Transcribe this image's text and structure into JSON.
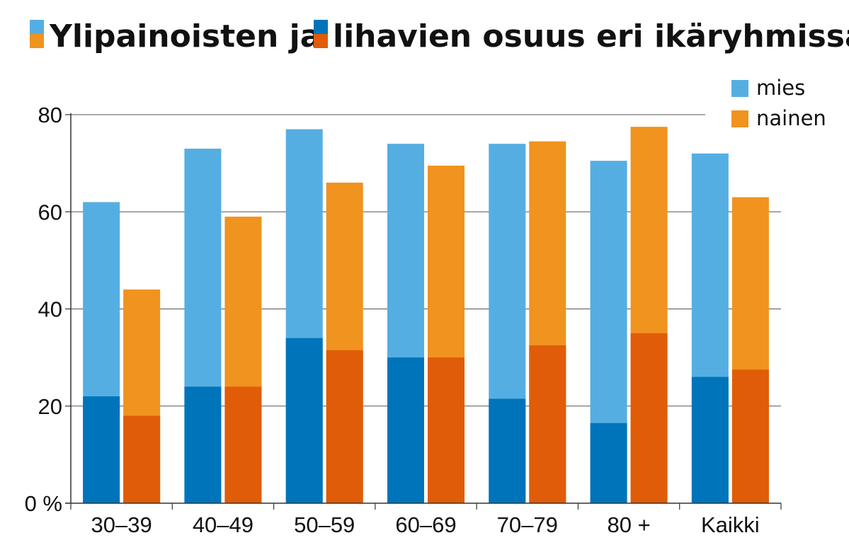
{
  "chart_data": {
    "type": "bar",
    "stacking": "overlapping: obese portion drawn over overweight portion",
    "title_part1": "Ylipainoisten ja",
    "title_part2": "lihavien osuus eri ikäryhmissä",
    "categories": [
      "30–39",
      "40–49",
      "50–59",
      "60–69",
      "70–79",
      "80 +",
      "Kaikki"
    ],
    "series": [
      {
        "name": "mies",
        "overweight": [
          62,
          73,
          77,
          74,
          74,
          70.5,
          72
        ],
        "obese": [
          22,
          24,
          34,
          30,
          21.5,
          16.5,
          26
        ]
      },
      {
        "name": "nainen",
        "overweight": [
          44,
          59,
          66,
          69.5,
          74.5,
          77.5,
          63
        ],
        "obese": [
          18,
          24,
          31.5,
          30,
          32.5,
          35,
          27.5
        ]
      }
    ],
    "y_ticks": [
      "0 %",
      "20",
      "40",
      "60",
      "80"
    ],
    "y_tick_values": [
      0,
      20,
      40,
      60,
      80
    ],
    "ylim": [
      0,
      80
    ],
    "grid": true,
    "legend_position": "top-right",
    "colors": {
      "mies_overweight": "#55aee2",
      "mies_obese": "#0074ba",
      "nainen_overweight": "#f0931f",
      "nainen_obese": "#e05c08",
      "grid": "#555555"
    }
  }
}
